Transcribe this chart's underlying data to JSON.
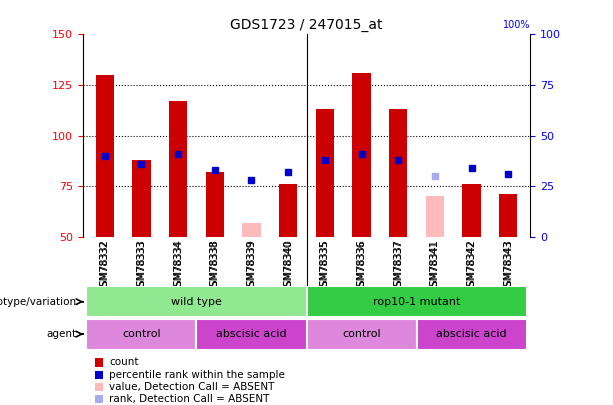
{
  "title": "GDS1723 / 247015_at",
  "samples": [
    "GSM78332",
    "GSM78333",
    "GSM78334",
    "GSM78338",
    "GSM78339",
    "GSM78340",
    "GSM78335",
    "GSM78336",
    "GSM78337",
    "GSM78341",
    "GSM78342",
    "GSM78343"
  ],
  "count_values": [
    130,
    88,
    117,
    82,
    57,
    76,
    113,
    131,
    113,
    70,
    76,
    71
  ],
  "count_absent": [
    false,
    false,
    false,
    false,
    true,
    false,
    false,
    false,
    false,
    true,
    false,
    false
  ],
  "rank_values": [
    90,
    86,
    91,
    83,
    78,
    82,
    88,
    91,
    88,
    80,
    84,
    81
  ],
  "rank_absent": [
    false,
    false,
    false,
    false,
    false,
    false,
    false,
    false,
    false,
    true,
    false,
    false
  ],
  "ylim_left": [
    50,
    150
  ],
  "ylim_right": [
    0,
    100
  ],
  "yticks_left": [
    50,
    75,
    100,
    125,
    150
  ],
  "yticks_right": [
    0,
    25,
    50,
    75,
    100
  ],
  "grid_values": [
    75,
    100,
    125
  ],
  "bar_width": 0.5,
  "marker_size": 5,
  "count_color": "#cc0000",
  "count_absent_color": "#ffbbbb",
  "rank_color": "#0000cc",
  "rank_absent_color": "#aaaaee",
  "bg_color": "#ffffff",
  "plot_bg_color": "#ffffff",
  "tick_label_area_color": "#d8d8d8",
  "genotype_colors": [
    "#99ee99",
    "#33cc55"
  ],
  "agent_colors_light": "#ee88ee",
  "agent_colors_dark": "#dd44dd",
  "genotype_row": {
    "label": "genotype/variation",
    "groups": [
      {
        "text": "wild type",
        "start": 0,
        "end": 5,
        "color": "#90e890"
      },
      {
        "text": "rop10-1 mutant",
        "start": 6,
        "end": 11,
        "color": "#33cc44"
      }
    ]
  },
  "agent_row": {
    "label": "agent",
    "groups": [
      {
        "text": "control",
        "start": 0,
        "end": 2,
        "color": "#dd88dd"
      },
      {
        "text": "abscisic acid",
        "start": 3,
        "end": 5,
        "color": "#cc44cc"
      },
      {
        "text": "control",
        "start": 6,
        "end": 8,
        "color": "#dd88dd"
      },
      {
        "text": "abscisic acid",
        "start": 9,
        "end": 11,
        "color": "#cc44cc"
      }
    ]
  },
  "legend_items": [
    {
      "label": "count",
      "color": "#cc0000"
    },
    {
      "label": "percentile rank within the sample",
      "color": "#0000cc"
    },
    {
      "label": "value, Detection Call = ABSENT",
      "color": "#ffbbbb"
    },
    {
      "label": "rank, Detection Call = ABSENT",
      "color": "#aaaaee"
    }
  ]
}
